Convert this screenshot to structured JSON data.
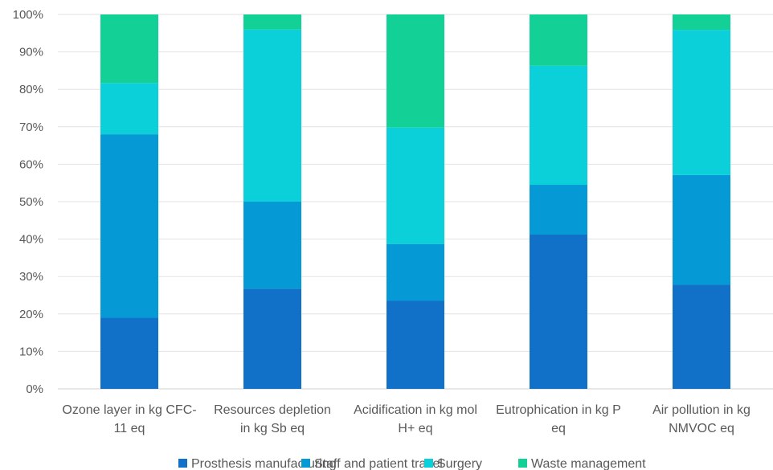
{
  "chart_data": {
    "type": "bar",
    "stacked": "percent",
    "categories": [
      [
        "Ozone layer in kg CFC-",
        "11 eq"
      ],
      [
        "Resources depletion",
        "in kg Sb eq"
      ],
      [
        "Acidification in kg mol",
        "H+ eq"
      ],
      [
        "Eutrophication in kg P",
        "eq"
      ],
      [
        "Air pollution in kg",
        "NMVOC eq"
      ]
    ],
    "series": [
      {
        "name": "Prosthesis manufacturing",
        "color": "#1170C7",
        "values": [
          19,
          26.7,
          23.5,
          41.2,
          27.8
        ]
      },
      {
        "name": "Staff and patient travel",
        "color": "#0599D5",
        "values": [
          49,
          23.3,
          15.2,
          13.3,
          29.3
        ]
      },
      {
        "name": "Surgery",
        "color": "#0BD0DA",
        "values": [
          13.7,
          46,
          31.1,
          31.8,
          38.8
        ]
      },
      {
        "name": "Waste management",
        "color": "#12D096",
        "values": [
          18.3,
          4,
          30.2,
          13.7,
          4.1
        ]
      }
    ],
    "yticks": [
      "0%",
      "10%",
      "20%",
      "30%",
      "40%",
      "50%",
      "60%",
      "70%",
      "80%",
      "90%",
      "100%"
    ],
    "ylim": [
      0,
      100
    ],
    "grid": true,
    "legend": "bottom"
  }
}
